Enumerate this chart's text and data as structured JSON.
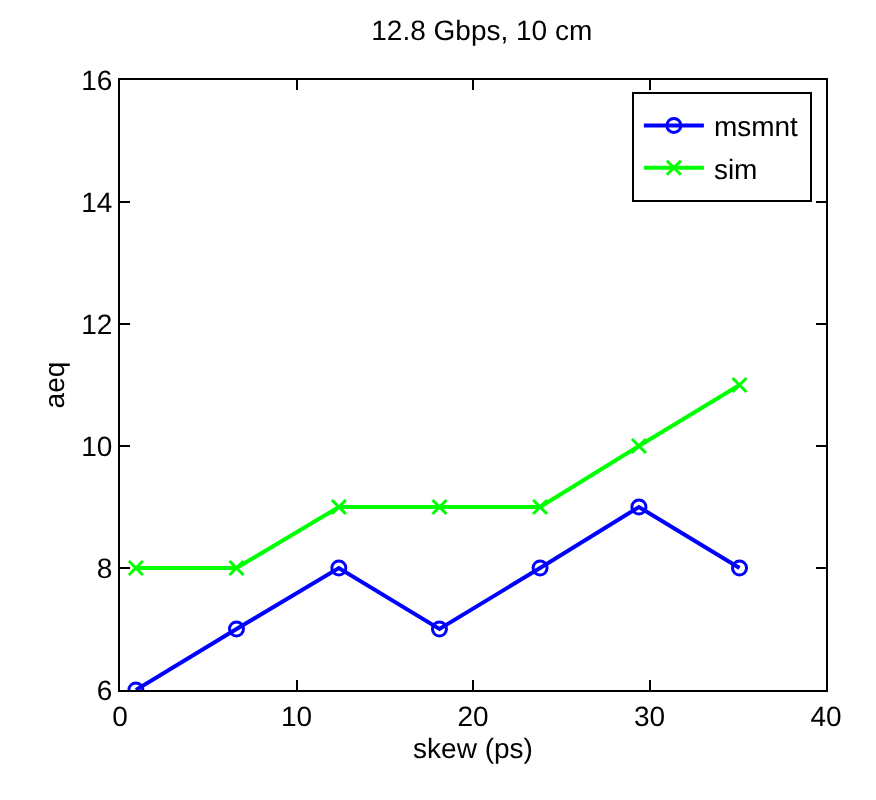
{
  "chart_data": {
    "type": "line",
    "title": "12.8 Gbps, 10 cm",
    "xlabel": "skew (ps)",
    "ylabel": "aeq",
    "x": [
      0.9,
      6.6,
      12.4,
      18.1,
      23.8,
      29.4,
      35.1
    ],
    "series": [
      {
        "name": "msmnt",
        "color": "#0000ff",
        "marker": "circle",
        "values": [
          6,
          7,
          8,
          7,
          8,
          9,
          8
        ]
      },
      {
        "name": "sim",
        "color": "#00ff00",
        "marker": "cross",
        "values": [
          8,
          8,
          9,
          9,
          9,
          10,
          11
        ]
      }
    ],
    "xlim": [
      0,
      40
    ],
    "xticks": [
      0,
      10,
      20,
      30,
      40
    ],
    "ylim": [
      6,
      16
    ],
    "yticks": [
      6,
      8,
      10,
      12,
      14,
      16
    ],
    "grid": false,
    "legend": "top right",
    "line_style": "solid"
  }
}
